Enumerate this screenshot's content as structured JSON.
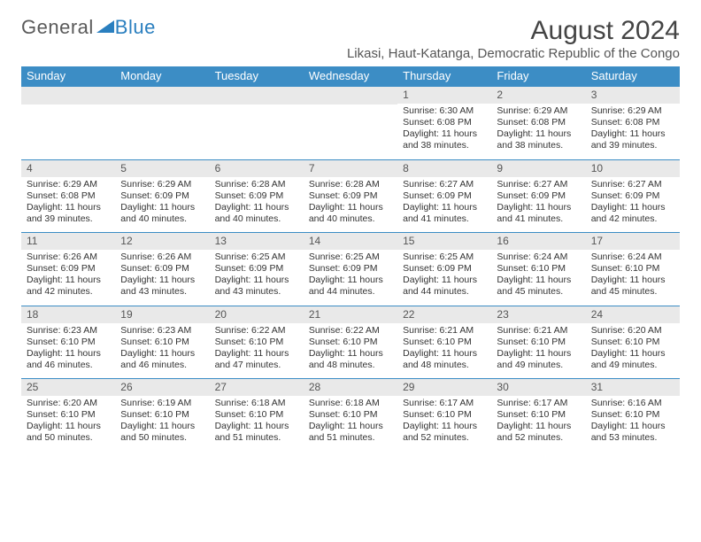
{
  "logo": {
    "part1": "General",
    "part2": "Blue"
  },
  "title": "August 2024",
  "subtitle": "Likasi, Haut-Katanga, Democratic Republic of the Congo",
  "colors": {
    "header_bg": "#3c8dc5",
    "header_text": "#ffffff",
    "daynum_bg": "#e9e9e9",
    "border": "#3c8dc5",
    "body_text": "#333333",
    "title_text": "#444444",
    "logo_gray": "#5a5a5a",
    "logo_blue": "#2a7fbf"
  },
  "dayHeaders": [
    "Sunday",
    "Monday",
    "Tuesday",
    "Wednesday",
    "Thursday",
    "Friday",
    "Saturday"
  ],
  "weeks": [
    [
      null,
      null,
      null,
      null,
      {
        "n": "1",
        "sr": "6:30 AM",
        "ss": "6:08 PM",
        "dl": "11 hours and 38 minutes."
      },
      {
        "n": "2",
        "sr": "6:29 AM",
        "ss": "6:08 PM",
        "dl": "11 hours and 38 minutes."
      },
      {
        "n": "3",
        "sr": "6:29 AM",
        "ss": "6:08 PM",
        "dl": "11 hours and 39 minutes."
      }
    ],
    [
      {
        "n": "4",
        "sr": "6:29 AM",
        "ss": "6:08 PM",
        "dl": "11 hours and 39 minutes."
      },
      {
        "n": "5",
        "sr": "6:29 AM",
        "ss": "6:09 PM",
        "dl": "11 hours and 40 minutes."
      },
      {
        "n": "6",
        "sr": "6:28 AM",
        "ss": "6:09 PM",
        "dl": "11 hours and 40 minutes."
      },
      {
        "n": "7",
        "sr": "6:28 AM",
        "ss": "6:09 PM",
        "dl": "11 hours and 40 minutes."
      },
      {
        "n": "8",
        "sr": "6:27 AM",
        "ss": "6:09 PM",
        "dl": "11 hours and 41 minutes."
      },
      {
        "n": "9",
        "sr": "6:27 AM",
        "ss": "6:09 PM",
        "dl": "11 hours and 41 minutes."
      },
      {
        "n": "10",
        "sr": "6:27 AM",
        "ss": "6:09 PM",
        "dl": "11 hours and 42 minutes."
      }
    ],
    [
      {
        "n": "11",
        "sr": "6:26 AM",
        "ss": "6:09 PM",
        "dl": "11 hours and 42 minutes."
      },
      {
        "n": "12",
        "sr": "6:26 AM",
        "ss": "6:09 PM",
        "dl": "11 hours and 43 minutes."
      },
      {
        "n": "13",
        "sr": "6:25 AM",
        "ss": "6:09 PM",
        "dl": "11 hours and 43 minutes."
      },
      {
        "n": "14",
        "sr": "6:25 AM",
        "ss": "6:09 PM",
        "dl": "11 hours and 44 minutes."
      },
      {
        "n": "15",
        "sr": "6:25 AM",
        "ss": "6:09 PM",
        "dl": "11 hours and 44 minutes."
      },
      {
        "n": "16",
        "sr": "6:24 AM",
        "ss": "6:10 PM",
        "dl": "11 hours and 45 minutes."
      },
      {
        "n": "17",
        "sr": "6:24 AM",
        "ss": "6:10 PM",
        "dl": "11 hours and 45 minutes."
      }
    ],
    [
      {
        "n": "18",
        "sr": "6:23 AM",
        "ss": "6:10 PM",
        "dl": "11 hours and 46 minutes."
      },
      {
        "n": "19",
        "sr": "6:23 AM",
        "ss": "6:10 PM",
        "dl": "11 hours and 46 minutes."
      },
      {
        "n": "20",
        "sr": "6:22 AM",
        "ss": "6:10 PM",
        "dl": "11 hours and 47 minutes."
      },
      {
        "n": "21",
        "sr": "6:22 AM",
        "ss": "6:10 PM",
        "dl": "11 hours and 48 minutes."
      },
      {
        "n": "22",
        "sr": "6:21 AM",
        "ss": "6:10 PM",
        "dl": "11 hours and 48 minutes."
      },
      {
        "n": "23",
        "sr": "6:21 AM",
        "ss": "6:10 PM",
        "dl": "11 hours and 49 minutes."
      },
      {
        "n": "24",
        "sr": "6:20 AM",
        "ss": "6:10 PM",
        "dl": "11 hours and 49 minutes."
      }
    ],
    [
      {
        "n": "25",
        "sr": "6:20 AM",
        "ss": "6:10 PM",
        "dl": "11 hours and 50 minutes."
      },
      {
        "n": "26",
        "sr": "6:19 AM",
        "ss": "6:10 PM",
        "dl": "11 hours and 50 minutes."
      },
      {
        "n": "27",
        "sr": "6:18 AM",
        "ss": "6:10 PM",
        "dl": "11 hours and 51 minutes."
      },
      {
        "n": "28",
        "sr": "6:18 AM",
        "ss": "6:10 PM",
        "dl": "11 hours and 51 minutes."
      },
      {
        "n": "29",
        "sr": "6:17 AM",
        "ss": "6:10 PM",
        "dl": "11 hours and 52 minutes."
      },
      {
        "n": "30",
        "sr": "6:17 AM",
        "ss": "6:10 PM",
        "dl": "11 hours and 52 minutes."
      },
      {
        "n": "31",
        "sr": "6:16 AM",
        "ss": "6:10 PM",
        "dl": "11 hours and 53 minutes."
      }
    ]
  ],
  "labels": {
    "sunrise": "Sunrise: ",
    "sunset": "Sunset: ",
    "daylight": "Daylight: "
  }
}
